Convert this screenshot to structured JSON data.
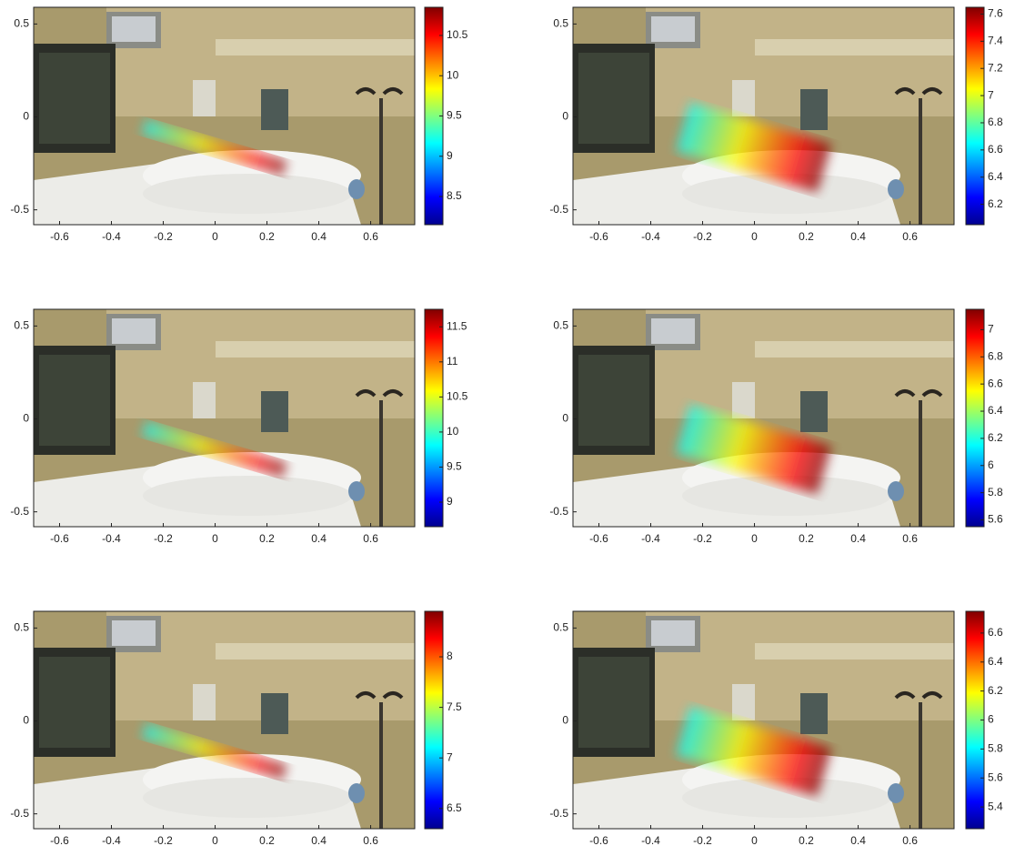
{
  "chart_data": [
    {
      "type": "heatmap",
      "xlim": [
        -0.7,
        0.77
      ],
      "ylim": [
        -0.58,
        0.59
      ],
      "xticks": [
        -0.6,
        -0.4,
        -0.2,
        0,
        0.2,
        0.4,
        0.6
      ],
      "yticks": [
        -0.5,
        0,
        0.5
      ],
      "clim": [
        8.15,
        10.85
      ],
      "cticks": [
        8.5,
        9,
        9.5,
        10,
        10.5
      ]
    },
    {
      "type": "heatmap",
      "xlim": [
        -0.7,
        0.77
      ],
      "ylim": [
        -0.58,
        0.59
      ],
      "xticks": [
        -0.6,
        -0.4,
        -0.2,
        0,
        0.2,
        0.4,
        0.6
      ],
      "yticks": [
        -0.5,
        0,
        0.5
      ],
      "clim": [
        6.05,
        7.65
      ],
      "cticks": [
        6.2,
        6.4,
        6.6,
        6.8,
        7,
        7.2,
        7.4,
        7.6
      ]
    },
    {
      "type": "heatmap",
      "xlim": [
        -0.7,
        0.77
      ],
      "ylim": [
        -0.58,
        0.59
      ],
      "xticks": [
        -0.6,
        -0.4,
        -0.2,
        0,
        0.2,
        0.4,
        0.6
      ],
      "yticks": [
        -0.5,
        0,
        0.5
      ],
      "clim": [
        8.65,
        11.75
      ],
      "cticks": [
        9,
        9.5,
        10,
        10.5,
        11,
        11.5
      ]
    },
    {
      "type": "heatmap",
      "xlim": [
        -0.7,
        0.77
      ],
      "ylim": [
        -0.58,
        0.59
      ],
      "xticks": [
        -0.6,
        -0.4,
        -0.2,
        0,
        0.2,
        0.4,
        0.6
      ],
      "yticks": [
        -0.5,
        0,
        0.5
      ],
      "clim": [
        5.55,
        7.15
      ],
      "cticks": [
        5.6,
        5.8,
        6,
        6.2,
        6.4,
        6.6,
        6.8,
        7
      ]
    },
    {
      "type": "heatmap",
      "xlim": [
        -0.7,
        0.77
      ],
      "ylim": [
        -0.58,
        0.59
      ],
      "xticks": [
        -0.6,
        -0.4,
        -0.2,
        0,
        0.2,
        0.4,
        0.6
      ],
      "yticks": [
        -0.5,
        0,
        0.5
      ],
      "clim": [
        6.3,
        8.45
      ],
      "cticks": [
        6.5,
        7,
        7.5,
        8
      ]
    },
    {
      "type": "heatmap",
      "xlim": [
        -0.7,
        0.77
      ],
      "ylim": [
        -0.58,
        0.59
      ],
      "xticks": [
        -0.6,
        -0.4,
        -0.2,
        0,
        0.2,
        0.4,
        0.6
      ],
      "yticks": [
        -0.5,
        0,
        0.5
      ],
      "clim": [
        5.25,
        6.75
      ],
      "cticks": [
        5.4,
        5.6,
        5.8,
        6,
        6.2,
        6.4,
        6.6
      ]
    }
  ]
}
